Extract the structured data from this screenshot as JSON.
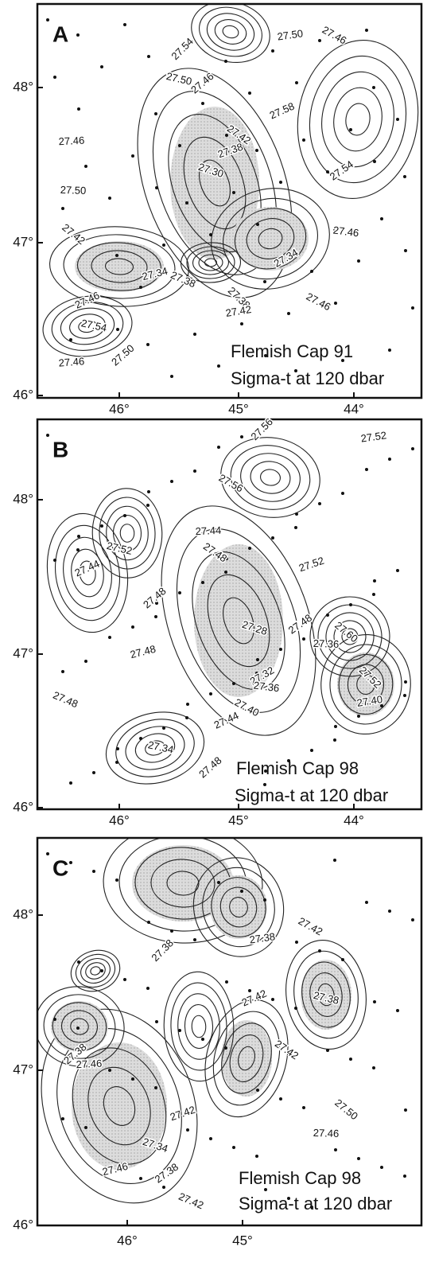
{
  "panels": [
    {
      "label": "A",
      "y_ticks": [
        "48°",
        "47°",
        "46°"
      ],
      "x_ticks": [
        "46°",
        "45°",
        "44°"
      ],
      "contour_labels": [
        "27.54",
        "27.50",
        "27.46",
        "27.58",
        "27.50",
        "27.46",
        "27.46",
        "27.42",
        "27.38",
        "27.30",
        "27.54",
        "27.50",
        "27.42",
        "27.34",
        "27.38",
        "27.34",
        "27.46",
        "27.38",
        "27.42",
        "27.46",
        "27.46",
        "27.54",
        "27.50",
        "27.46"
      ],
      "caption": [
        "Flemish Cap 91",
        "Sigma-t at 120 dbar"
      ]
    },
    {
      "label": "B",
      "y_ticks": [
        "48°",
        "47°",
        "46°"
      ],
      "x_ticks": [
        "46°",
        "45°",
        "44°"
      ],
      "contour_labels": [
        "27.56",
        "27.52",
        "27.56",
        "27.44",
        "27.52",
        "27.48",
        "27.44",
        "27.48",
        "27.52",
        "27.28",
        "27.48",
        "27.36",
        "27.60",
        "27.48",
        "27.48",
        "27.32",
        "27.36",
        "27.52",
        "27.40",
        "27.40",
        "27.44",
        "27.34",
        "27.48"
      ],
      "caption": [
        "Flemish Cap 98",
        "Sigma-t at 120 dbar"
      ]
    },
    {
      "label": "C",
      "y_ticks": [
        "48°",
        "47°",
        "46°"
      ],
      "x_ticks": [
        "46°",
        "45°"
      ],
      "contour_labels": [
        "27.38",
        "27.38",
        "27.42",
        "27.42",
        "27.38",
        "27.38",
        "27.46",
        "27.42",
        "27.42",
        "27.34",
        "27.38",
        "27.46",
        "27.50",
        "27.46",
        "27.42"
      ],
      "caption": [
        "Flemish Cap 98",
        "Sigma-t at 120 dbar"
      ]
    }
  ]
}
